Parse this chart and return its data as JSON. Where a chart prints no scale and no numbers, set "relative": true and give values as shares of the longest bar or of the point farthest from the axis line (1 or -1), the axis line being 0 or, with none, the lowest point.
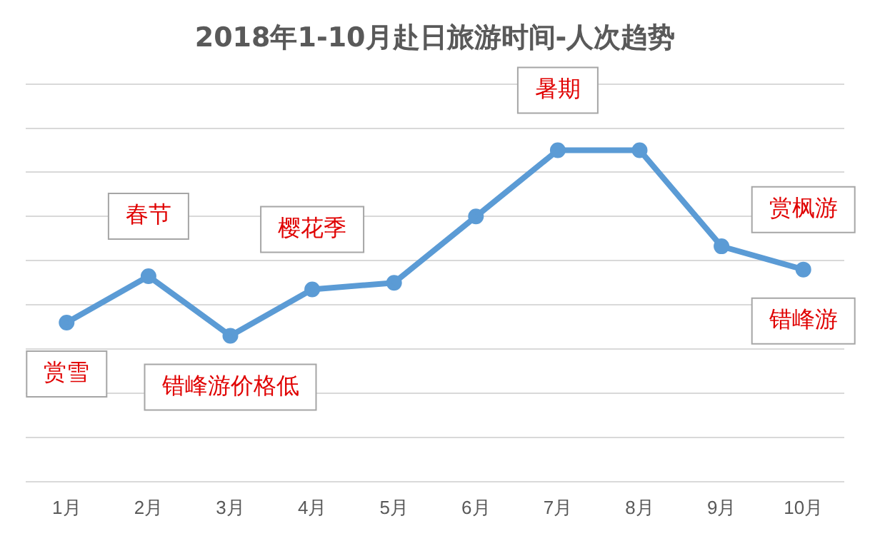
{
  "chart_data": {
    "type": "line",
    "title": "2018年1-10月赴日旅游时间-人次趋势",
    "categories": [
      "1月",
      "2月",
      "3月",
      "4月",
      "5月",
      "6月",
      "7月",
      "8月",
      "9月",
      "10月"
    ],
    "series": [
      {
        "color": "#5b9bd5",
        "values": [
          0.48,
          0.62,
          0.44,
          0.58,
          0.6,
          0.8,
          1.0,
          1.0,
          0.71,
          0.64
        ]
      }
    ],
    "relative": true,
    "grid": "y",
    "legend": false,
    "marker": "circle",
    "line_style": "solid",
    "annotations": [
      {
        "text": "赏雪",
        "x": "1月",
        "y": 0.48
      },
      {
        "text": "春节",
        "x": "2月",
        "y": 0.62
      },
      {
        "text": "错峰游价格低",
        "x": "3月",
        "y": 0.44
      },
      {
        "text": "樱花季",
        "x": "4月",
        "y": 0.58
      },
      {
        "text": "暑期",
        "x": "7月",
        "y": 1.0
      },
      {
        "text": "赏枫游",
        "x": "10月",
        "y": 0.64
      },
      {
        "text": "错峰游",
        "x": "10月",
        "y": 0.64
      }
    ]
  }
}
